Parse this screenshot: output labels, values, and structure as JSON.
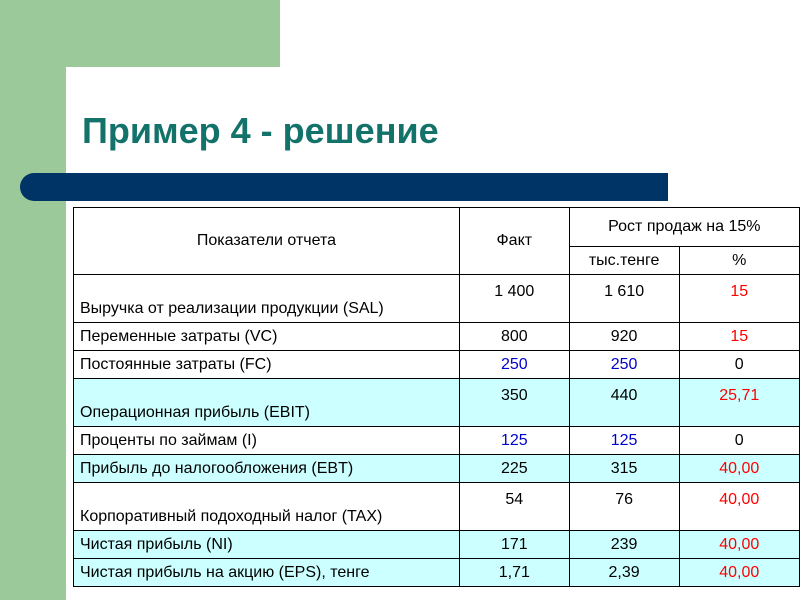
{
  "title": "Пример 4 - решение",
  "colors": {
    "accent_green": "#9cc99a",
    "title_color": "#13736b",
    "bar_navy": "#003366",
    "row_highlight": "#ccffff",
    "value_blue": "#0000cc",
    "value_red": "#ff0000"
  },
  "table": {
    "headers": {
      "indicators": "Показатели отчета",
      "fact": "Факт",
      "growth": "Рост продаж на 15%",
      "thousand_tenge": "тыс.тенге",
      "percent": "%"
    },
    "rows": [
      {
        "name": "Выручка от реализации продукции (SAL)",
        "fact": "1 400",
        "ths": "1 610",
        "pct": "15"
      },
      {
        "name": "Переменные затраты (VC)",
        "fact": "800",
        "ths": "920",
        "pct": "15"
      },
      {
        "name": "Постоянные затраты (FC)",
        "fact": "250",
        "ths": "250",
        "pct": "0"
      },
      {
        "name": "Операционная прибыль (EBIT)",
        "fact": "350",
        "ths": "440",
        "pct": "25,71"
      },
      {
        "name": "Проценты по займам (I)",
        "fact": "125",
        "ths": "125",
        "pct": "0"
      },
      {
        "name": "Прибыль до налогообложения (EBT)",
        "fact": "225",
        "ths": "315",
        "pct": "40,00"
      },
      {
        "name": "Корпоративный подоходный налог (TAX)",
        "fact": "54",
        "ths": "76",
        "pct": "40,00"
      },
      {
        "name": "Чистая прибыль (NI)",
        "fact": "171",
        "ths": "239",
        "pct": "40,00"
      },
      {
        "name": "Чистая прибыль на акцию (EPS), тенге",
        "fact": "1,71",
        "ths": "2,39",
        "pct": "40,00"
      }
    ]
  }
}
